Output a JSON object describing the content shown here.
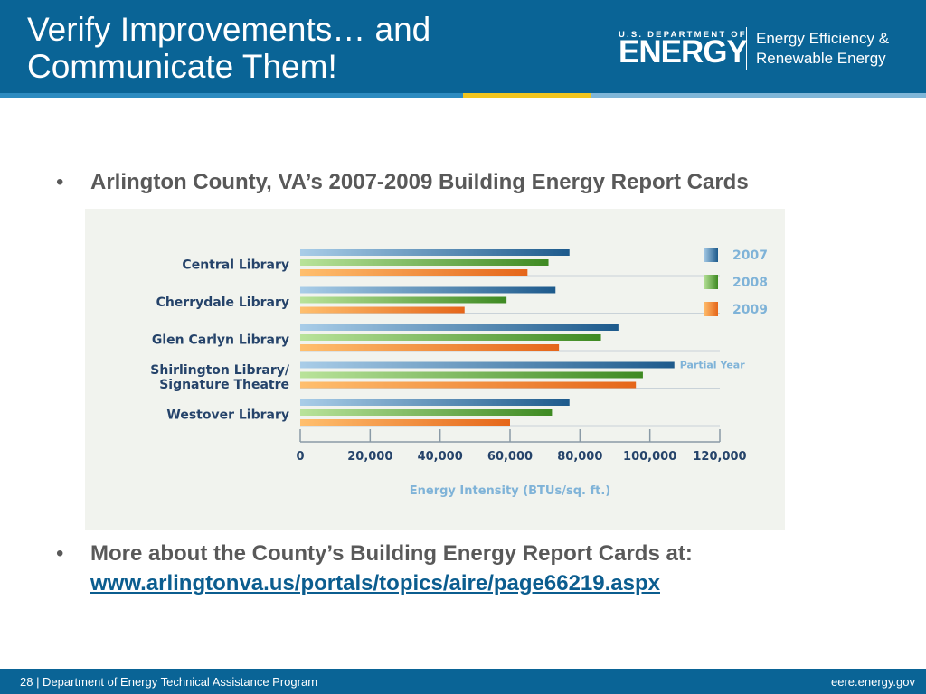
{
  "header": {
    "title_line1": "Verify Improvements… and",
    "title_line2": "Communicate Them!",
    "logo": {
      "dept_small": "U.S. DEPARTMENT OF",
      "dept_big": "ENERGY",
      "office_line1": "Energy Efficiency &",
      "office_line2": "Renewable Energy"
    }
  },
  "bullets": [
    {
      "dot": "•",
      "text": "Arlington County, VA’s 2007-2009 Building Energy Report Cards"
    },
    {
      "dot": "•",
      "text": "More about the County’s Building Energy Report Cards at:",
      "link": "www.arlingtonva.us/portals/topics/aire/page66219.aspx"
    }
  ],
  "chart_data": {
    "type": "bar",
    "orientation": "horizontal",
    "categories": [
      "Central Library",
      "Cherrydale Library",
      "Glen Carlyn Library",
      "Shirlington Library/ Signature Theatre",
      "Westover Library"
    ],
    "category_lines": [
      [
        "Central Library"
      ],
      [
        "Cherrydale Library"
      ],
      [
        "Glen Carlyn Library"
      ],
      [
        "Shirlington Library/",
        "Signature Theatre"
      ],
      [
        "Westover Library"
      ]
    ],
    "series": [
      {
        "name": "2007",
        "color": "#1d5a8c",
        "values": [
          77000,
          73000,
          91000,
          107000,
          77000
        ]
      },
      {
        "name": "2008",
        "color": "#4a9a2c",
        "values": [
          71000,
          59000,
          86000,
          98000,
          72000
        ]
      },
      {
        "name": "2009",
        "color": "#e8741c",
        "values": [
          65000,
          47000,
          74000,
          96000,
          60000
        ]
      }
    ],
    "annotation": {
      "text": "Partial Year",
      "category_index": 3,
      "series_index": 0
    },
    "xlim": [
      0,
      120000
    ],
    "xticks": [
      "0",
      "20,000",
      "40,000",
      "60,000",
      "80,000",
      "100,000",
      "120,000"
    ],
    "xlabel": "Energy Intensity (BTUs/sq. ft.)",
    "legend_position": "right",
    "grid": false
  },
  "footer": {
    "left": "28 | Department of Energy Technical Assistance Program",
    "right": "eere.energy.gov"
  }
}
